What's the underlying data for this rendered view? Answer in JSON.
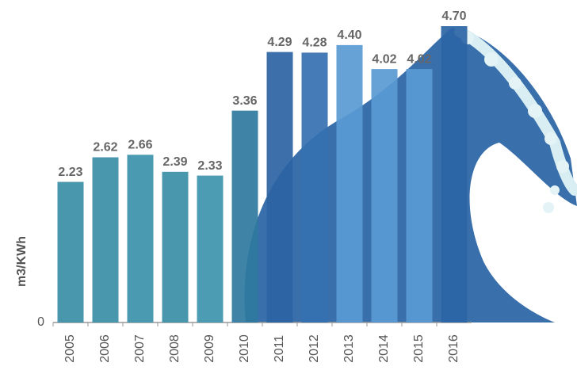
{
  "chart_data": {
    "type": "bar",
    "y_label": "m3/KWh",
    "categories": [
      "2005",
      "2006",
      "2007",
      "2008",
      "2009",
      "2010",
      "2011",
      "2012",
      "2013",
      "2014",
      "2015",
      "2016"
    ],
    "values": [
      2.23,
      2.62,
      2.66,
      2.39,
      2.33,
      3.36,
      4.29,
      4.28,
      4.4,
      4.02,
      4.02,
      4.7
    ],
    "value_labels": [
      "2.23",
      "2.62",
      "2.66",
      "2.39",
      "2.33",
      "3.36",
      "4.29",
      "4.28",
      "4.40",
      "4.02",
      "4.02",
      "4.70"
    ],
    "colors": [
      "#3a8ea6",
      "#3a8ea6",
      "#3b93ab",
      "#3a8ea6",
      "#3d95ad",
      "#2f79a0",
      "#2c64a3",
      "#3570b0",
      "#5a9ad4",
      "#5a9ad4",
      "#5a9ad4",
      "#2d65a5"
    ],
    "ylim": [
      0,
      4.7
    ],
    "yticks": [
      0
    ]
  }
}
